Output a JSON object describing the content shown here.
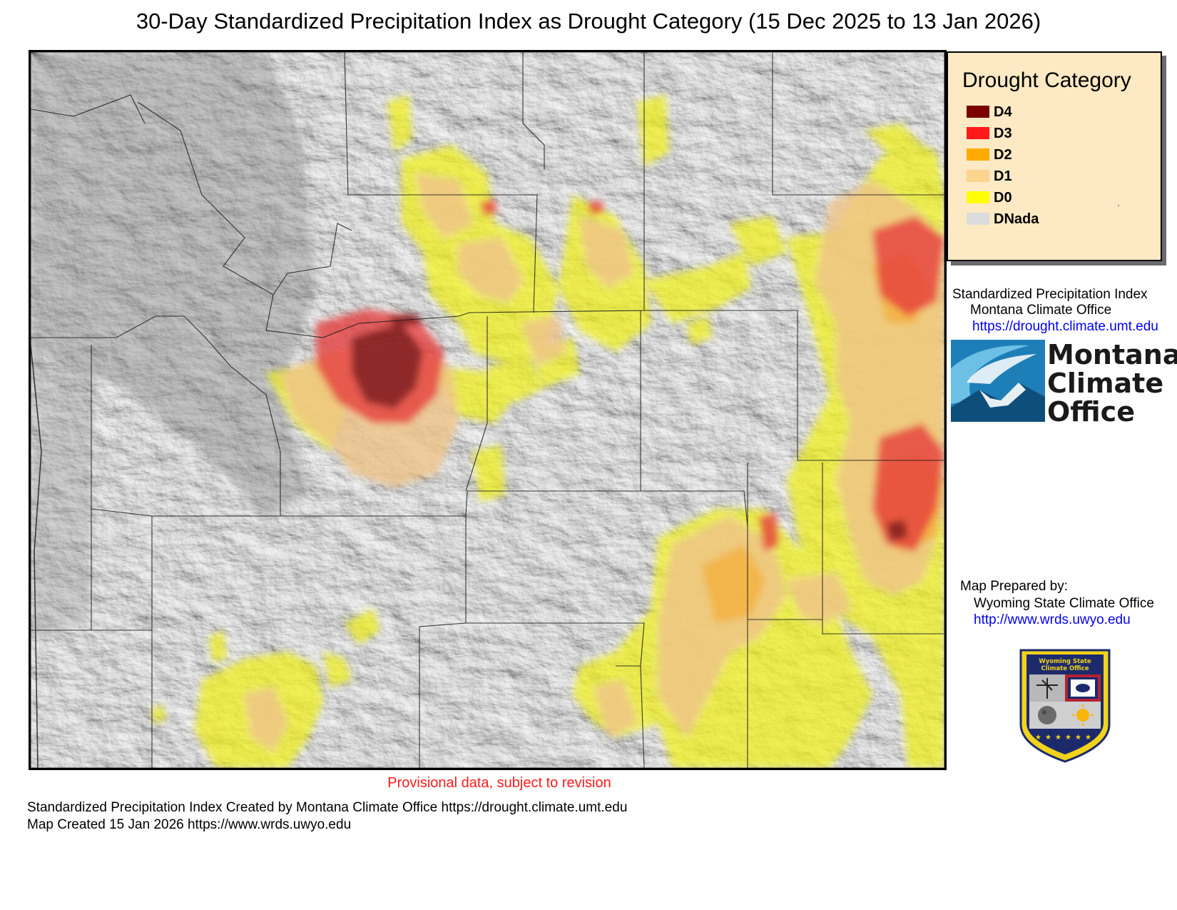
{
  "title": "30-Day Standardized Precipitation Index as Drought Category (15 Dec 2025 to 13 Jan 2026)",
  "legend": {
    "title": "Drought Category",
    "items": [
      {
        "label": "D4",
        "color": "#7a0000"
      },
      {
        "label": "D3",
        "color": "#ff1a1a"
      },
      {
        "label": "D2",
        "color": "#ffaa00"
      },
      {
        "label": "D1",
        "color": "#fcd38f"
      },
      {
        "label": "D0",
        "color": "#ffff00"
      },
      {
        "label": "DNada",
        "color": "#dcdcdc"
      }
    ]
  },
  "spi_credit": {
    "line1": "Standardized Precipitation Index",
    "line2": "Montana Climate Office",
    "url": "https://drought.climate.umt.edu"
  },
  "mco_logo": {
    "word1": "Montana",
    "word2": "Climate",
    "word3": "Office",
    "colors": {
      "blue": "#1e7fb8",
      "light": "#6cc0e5",
      "dark": "#0d4f7a"
    }
  },
  "prepared_by": {
    "label": "Map Prepared by:",
    "org": "Wyoming State Climate Office",
    "url": "http://www.wrds.uwyo.edu"
  },
  "wsco_badge": {
    "text_line1": "Wyoming State",
    "text_line2": "Climate Office",
    "colors": {
      "navy": "#1c2a6b",
      "gold": "#f2d21b"
    }
  },
  "provisional_note": "Provisional data, subject to revision",
  "footer": {
    "line1": "Standardized Precipitation Index Created by Montana Climate Office https://drought.climate.umt.edu",
    "line2": "Map Created 15 Jan 2026 https://www.wrds.uwyo.edu"
  }
}
